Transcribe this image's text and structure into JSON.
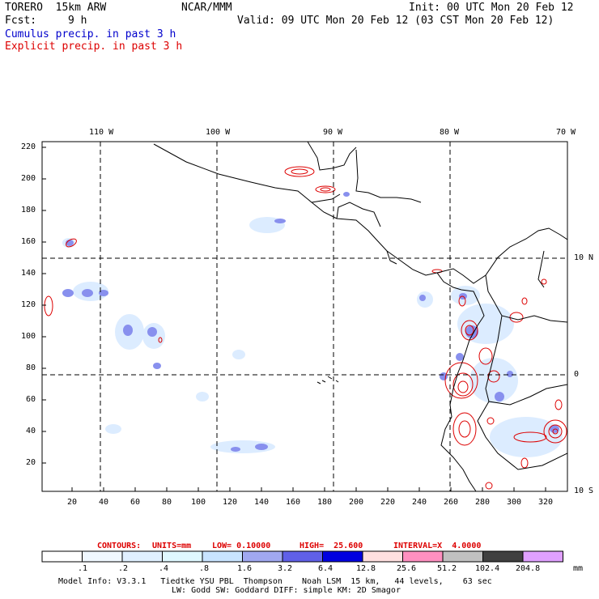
{
  "header": {
    "model": "TORERO  15km ARW",
    "org": "NCAR/MMM",
    "init": "Init: 00 UTC Mon 20 Feb 12",
    "fcst_label": "Fcst:",
    "fcst_value": "9 h",
    "valid": "Valid: 09 UTC Mon 20 Feb 12 (03 CST Mon 20 Feb 12)",
    "legend_cumulus": "Cumulus precip. in past 3 h",
    "legend_explicit": "Explicit precip. in past 3 h"
  },
  "colors": {
    "cumulus": "#0000cc",
    "explicit": "#dd0000"
  },
  "top_axis_labels": [
    "110 W",
    "100 W",
    "90 W",
    "80 W",
    "70 W"
  ],
  "right_axis_labels": [
    "10 N",
    "0",
    "10 S"
  ],
  "left_axis_ticks": [
    "220",
    "200",
    "180",
    "160",
    "140",
    "120",
    "100",
    "80",
    "60",
    "40",
    "20"
  ],
  "bottom_axis_ticks": [
    "20",
    "40",
    "60",
    "80",
    "100",
    "120",
    "140",
    "160",
    "180",
    "200",
    "220",
    "240",
    "260",
    "280",
    "300",
    "320"
  ],
  "contour_info": {
    "label": "CONTOURS:",
    "units": "UNITS=mm",
    "low": "LOW= 0.10000",
    "high": "HIGH=  25.600",
    "interval": "INTERVAL=X  4.0000"
  },
  "colorbar": {
    "thresholds": [
      ".1",
      ".2",
      ".4",
      ".8",
      "1.6",
      "3.2",
      "6.4",
      "12.8",
      "25.6",
      "51.2",
      "102.4",
      "204.8"
    ],
    "unit": "mm",
    "colors": [
      "#ffffff",
      "#f0f8ff",
      "#e0f0ff",
      "#dff8ff",
      "#c8e4ff",
      "#a0a8f0",
      "#6060e8",
      "#0000e0",
      "#ffe0e0",
      "#ff90c0",
      "#c0c0c0",
      "#404040",
      "#e0a0ff"
    ]
  },
  "footer": {
    "line1": "Model Info: V3.3.1   Tiedtke YSU PBL  Thompson    Noah LSM  15 km,   44 levels,    63 sec",
    "line2": "LW: Godd SW: Goddard DIFF: simple KM: 2D Smagor"
  }
}
